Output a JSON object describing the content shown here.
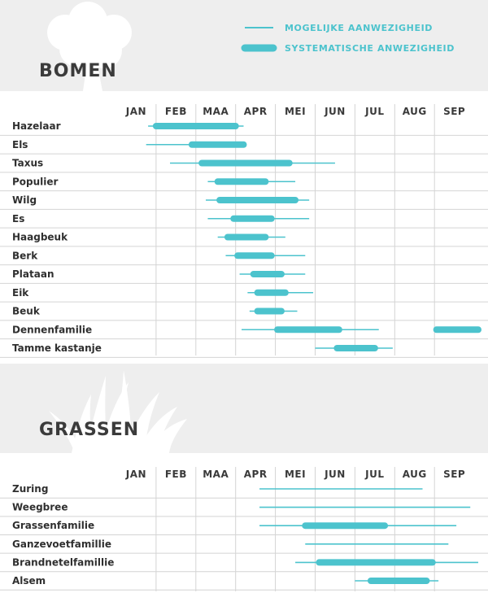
{
  "legend": {
    "possible": "MOGELIJKE AANWEZIGHEID",
    "systematic": "SYSTEMATISCHE ANWEZIGHEID"
  },
  "colors": {
    "accent": "#4cc3cd",
    "band": "#eeeeee",
    "title": "#3b3b3b",
    "grid": "#d4d4d4"
  },
  "chart_data": [
    {
      "type": "gantt",
      "title": "BOMEN",
      "icon": "tree-icon",
      "categories": [
        "JAN",
        "FEB",
        "MAA",
        "APR",
        "MEI",
        "JUN",
        "JUL",
        "AUG",
        "SEP"
      ],
      "rows": [
        {
          "name": "Hazelaar",
          "possible": [
            0.8,
            3.2
          ],
          "systematic": [
            1.0,
            3.0
          ]
        },
        {
          "name": "Els",
          "possible": [
            0.75,
            3.2
          ],
          "systematic": [
            1.9,
            3.2
          ]
        },
        {
          "name": "Taxus",
          "possible": [
            1.35,
            5.5
          ],
          "systematic": [
            2.15,
            4.35
          ]
        },
        {
          "name": "Populier",
          "possible": [
            2.3,
            4.5
          ],
          "systematic": [
            2.55,
            3.75
          ]
        },
        {
          "name": "Wilg",
          "possible": [
            2.25,
            4.85
          ],
          "systematic": [
            2.6,
            4.5
          ]
        },
        {
          "name": "Es",
          "possible": [
            2.3,
            4.85
          ],
          "systematic": [
            2.95,
            3.9
          ]
        },
        {
          "name": "Haagbeuk",
          "possible": [
            2.55,
            4.25
          ],
          "systematic": [
            2.8,
            3.75
          ]
        },
        {
          "name": "Berk",
          "possible": [
            2.75,
            4.75
          ],
          "systematic": [
            3.05,
            3.9
          ]
        },
        {
          "name": "Plataan",
          "possible": [
            3.1,
            4.75
          ],
          "systematic": [
            3.45,
            4.15
          ]
        },
        {
          "name": "Eik",
          "possible": [
            3.3,
            4.95
          ],
          "systematic": [
            3.55,
            4.25
          ]
        },
        {
          "name": "Beuk",
          "possible": [
            3.35,
            4.55
          ],
          "systematic": [
            3.55,
            4.15
          ]
        },
        {
          "name": "Dennenfamilie",
          "possible": [
            3.15,
            6.6
          ],
          "systematic": [
            4.05,
            5.6
          ]
        },
        {
          "name": "Tamme kastanje",
          "possible": [
            5.0,
            6.95
          ],
          "systematic": [
            5.55,
            6.5
          ]
        }
      ],
      "extra_segments": [
        {
          "row": "Dennenfamilie",
          "possible": [
            8.05,
            9.1
          ],
          "systematic": [
            8.05,
            9.1
          ]
        }
      ]
    },
    {
      "type": "gantt",
      "title": "GRASSEN",
      "icon": "grass-icon",
      "categories": [
        "JAN",
        "FEB",
        "MAA",
        "APR",
        "MEI",
        "JUN",
        "JUL",
        "AUG",
        "SEP"
      ],
      "rows": [
        {
          "name": "Zuring",
          "possible": [
            3.6,
            7.7
          ],
          "systematic": null
        },
        {
          "name": "Weegbree",
          "possible": [
            3.6,
            8.9
          ],
          "systematic": null
        },
        {
          "name": "Grassenfamilie",
          "possible": [
            3.6,
            8.55
          ],
          "systematic": [
            4.75,
            6.75
          ]
        },
        {
          "name": "Ganzevoetfamillie",
          "possible": [
            4.75,
            8.35
          ],
          "systematic": null
        },
        {
          "name": "Brandnetelfamillie",
          "possible": [
            4.5,
            9.1
          ],
          "systematic": [
            5.1,
            7.95
          ]
        },
        {
          "name": "Alsem",
          "possible": [
            6.0,
            8.1
          ],
          "systematic": [
            6.4,
            7.8
          ]
        }
      ]
    }
  ]
}
